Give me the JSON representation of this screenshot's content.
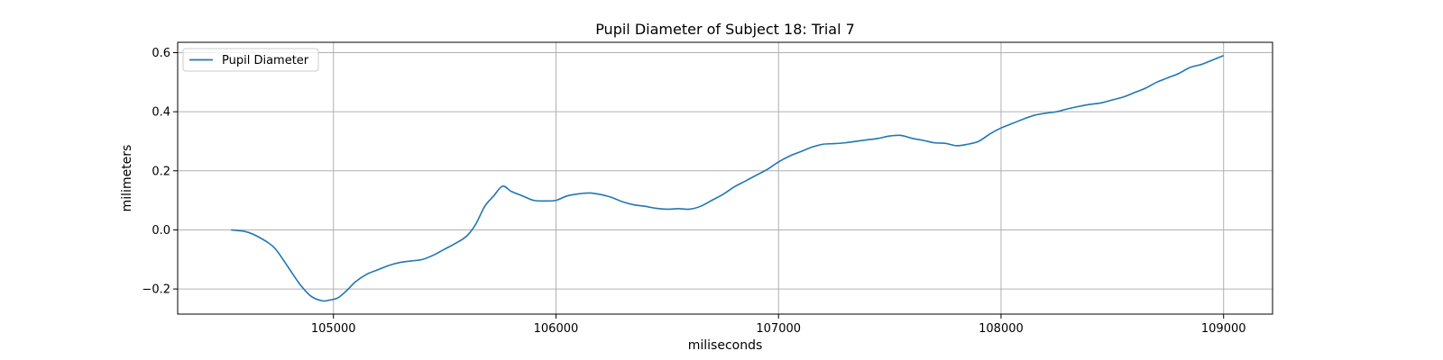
{
  "chart_data": {
    "type": "line",
    "title": "Pupil Diameter of Subject 18: Trial 7",
    "xlabel": "miliseconds",
    "ylabel": "milimeters",
    "xlim": [
      104300,
      109220
    ],
    "ylim": [
      -0.285,
      0.635
    ],
    "xticks": [
      105000,
      106000,
      107000,
      108000,
      109000
    ],
    "xtick_labels": [
      "105000",
      "106000",
      "107000",
      "108000",
      "109000"
    ],
    "yticks": [
      -0.2,
      0.0,
      0.2,
      0.4,
      0.6
    ],
    "ytick_labels": [
      "−0.2",
      "0.0",
      "0.2",
      "0.4",
      "0.6"
    ],
    "grid": true,
    "legend_position": "upper left",
    "colors": {
      "series": "#1f77b4",
      "grid": "#b0b0b0",
      "axes": "#000000"
    },
    "series": [
      {
        "name": "Pupil Diameter",
        "x": [
          104540,
          104600,
          104640,
          104700,
          104740,
          104800,
          104850,
          104900,
          104950,
          104980,
          105020,
          105060,
          105100,
          105150,
          105200,
          105250,
          105300,
          105350,
          105400,
          105450,
          105500,
          105550,
          105600,
          105640,
          105680,
          105720,
          105760,
          105800,
          105850,
          105900,
          105950,
          106000,
          106050,
          106100,
          106150,
          106200,
          106250,
          106300,
          106350,
          106400,
          106450,
          106500,
          106550,
          106600,
          106650,
          106700,
          106750,
          106800,
          106850,
          106900,
          106950,
          107000,
          107050,
          107100,
          107150,
          107200,
          107250,
          107300,
          107350,
          107400,
          107450,
          107500,
          107550,
          107600,
          107650,
          107700,
          107750,
          107800,
          107850,
          107900,
          107950,
          108000,
          108050,
          108100,
          108150,
          108200,
          108250,
          108300,
          108350,
          108400,
          108450,
          108500,
          108550,
          108600,
          108650,
          108700,
          108750,
          108800,
          108850,
          108900,
          108950,
          109000
        ],
        "values": [
          0.0,
          -0.005,
          -0.015,
          -0.04,
          -0.065,
          -0.13,
          -0.185,
          -0.225,
          -0.24,
          -0.238,
          -0.23,
          -0.205,
          -0.175,
          -0.15,
          -0.135,
          -0.12,
          -0.11,
          -0.105,
          -0.1,
          -0.085,
          -0.065,
          -0.045,
          -0.02,
          0.02,
          0.08,
          0.115,
          0.148,
          0.13,
          0.115,
          0.1,
          0.098,
          0.1,
          0.115,
          0.122,
          0.125,
          0.12,
          0.11,
          0.095,
          0.085,
          0.08,
          0.073,
          0.07,
          0.072,
          0.07,
          0.08,
          0.1,
          0.12,
          0.145,
          0.165,
          0.185,
          0.205,
          0.23,
          0.25,
          0.265,
          0.28,
          0.29,
          0.292,
          0.295,
          0.3,
          0.305,
          0.31,
          0.318,
          0.32,
          0.31,
          0.303,
          0.295,
          0.293,
          0.285,
          0.29,
          0.3,
          0.325,
          0.345,
          0.36,
          0.375,
          0.388,
          0.395,
          0.4,
          0.41,
          0.418,
          0.425,
          0.43,
          0.44,
          0.45,
          0.465,
          0.48,
          0.5,
          0.515,
          0.53,
          0.55,
          0.56,
          0.575,
          0.59
        ]
      }
    ]
  }
}
